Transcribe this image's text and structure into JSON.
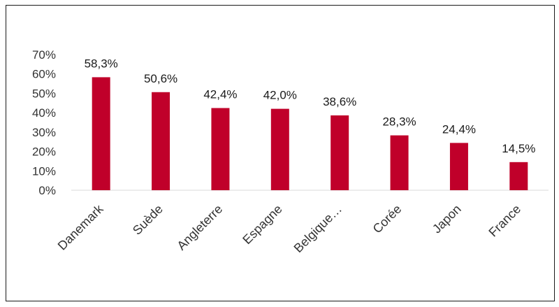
{
  "chart_data": {
    "type": "bar",
    "categories": [
      "Danemark",
      "Suède",
      "Angleterre",
      "Espagne",
      "Belgique…",
      "Corée",
      "Japon",
      "France"
    ],
    "values": [
      58.3,
      50.6,
      42.4,
      42.0,
      38.6,
      28.3,
      24.4,
      14.5
    ],
    "data_labels": [
      "58,3%",
      "50,6%",
      "42,4%",
      "42,0%",
      "38,6%",
      "28,3%",
      "24,4%",
      "14,5%"
    ],
    "y_ticks": [
      "0%",
      "10%",
      "20%",
      "30%",
      "40%",
      "50%",
      "60%",
      "70%"
    ],
    "ylim": [
      0,
      70
    ],
    "grid": false,
    "legend": "none",
    "bar_color": "#c0002a",
    "title": "",
    "xlabel": "",
    "ylabel": ""
  }
}
